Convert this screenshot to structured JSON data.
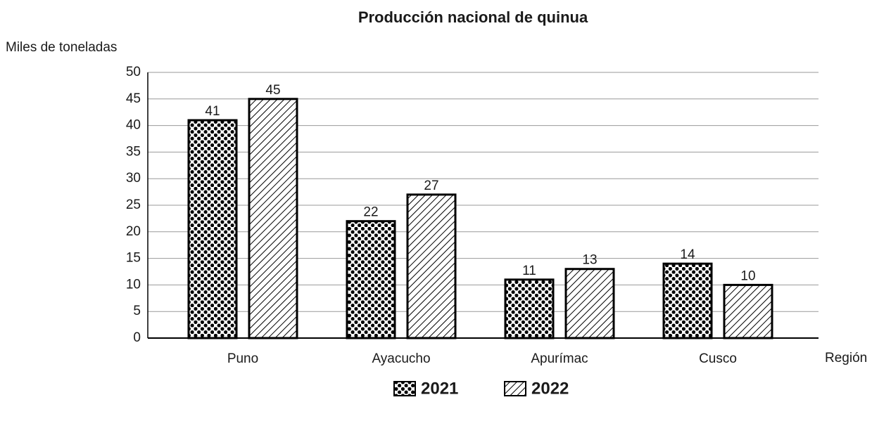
{
  "chart_data": {
    "type": "bar",
    "title": "Producción nacional de quinua",
    "y_label": "Miles de toneladas",
    "x_label": "Región",
    "categories": [
      "Puno",
      "Ayacucho",
      "Apurímac",
      "Cusco"
    ],
    "series": [
      {
        "name": "2021",
        "color": "#000000",
        "pattern": "dots",
        "values": [
          41,
          22,
          11,
          14
        ]
      },
      {
        "name": "2022",
        "color": "#000000",
        "pattern": "hatch",
        "values": [
          45,
          27,
          13,
          10
        ]
      }
    ],
    "ylim": [
      0,
      50
    ],
    "yticks": [
      0,
      5,
      10,
      15,
      20,
      25,
      30,
      35,
      40,
      45,
      50
    ],
    "grid": true,
    "legend": "bottom"
  }
}
